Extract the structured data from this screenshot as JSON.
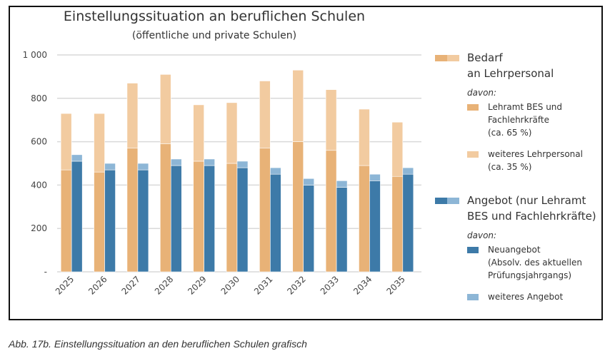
{
  "chart_data": {
    "type": "bar",
    "stacked": true,
    "title": "Einstellungssituation an beruflichen Schulen",
    "subtitle": "(öffentliche und private Schulen)",
    "categories": [
      "2025",
      "2026",
      "2027",
      "2028",
      "2029",
      "2030",
      "2031",
      "2032",
      "2033",
      "2034",
      "2035"
    ],
    "yticks": [
      "-",
      "200",
      "400",
      "600",
      "800",
      "1 000"
    ],
    "ylim": [
      0,
      1000
    ],
    "grid": true,
    "legend_position": "right",
    "groups": [
      {
        "name": "Bedarf an Lehrpersonal",
        "series": [
          {
            "name": "Lehramt BES und Fachlehrkräfte (ca. 65 %)",
            "color": "#E8B277",
            "values": [
              470,
              460,
              570,
              590,
              510,
              500,
              570,
              600,
              560,
              490,
              440
            ]
          },
          {
            "name": "weiteres Lehrpersonal (ca. 35 %)",
            "color": "#F2CBA0",
            "values": [
              260,
              270,
              300,
              320,
              260,
              280,
              310,
              330,
              280,
              260,
              250
            ]
          }
        ]
      },
      {
        "name": "Angebot (nur Lehramt BES und Fachlehrkräfte)",
        "series": [
          {
            "name": "Neuangebot (Absolv. des aktuellen Prüfungsjahrgangs)",
            "color": "#3D7AA8",
            "values": [
              510,
              470,
              470,
              490,
              490,
              480,
              450,
              400,
              390,
              420,
              450
            ]
          },
          {
            "name": "weiteres Angebot",
            "color": "#8DB6D6",
            "values": [
              30,
              30,
              30,
              30,
              30,
              30,
              30,
              30,
              30,
              30,
              30
            ]
          }
        ]
      }
    ]
  },
  "legend": {
    "bedarf_1": "Bedarf",
    "bedarf_2": "an Lehrpersonal",
    "davon": "davon:",
    "lehramt_1": "Lehramt BES und",
    "lehramt_2": "Fachlehrkräfte",
    "lehramt_3": "(ca. 65 %)",
    "weiteres_1": "weiteres Lehrpersonal",
    "weiteres_2": "(ca. 35 %)",
    "angebot_1": "Angebot (nur Lehramt",
    "angebot_2": "BES und Fachlehrkräfte)",
    "neu_1": "Neuangebot",
    "neu_2": "(Absolv. des aktuellen",
    "neu_3": "Prüfungsjahrgangs)",
    "weiteres_angebot": "weiteres Angebot"
  },
  "caption": "Abb. 17b. Einstellungssituation an den beruflichen Schulen grafisch"
}
